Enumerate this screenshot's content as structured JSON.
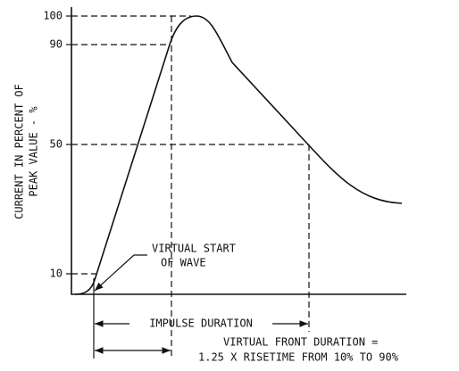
{
  "y_axis": {
    "label_lines": [
      "CURRENT IN PERCENT OF",
      "PEAK VALUE - %"
    ],
    "ticks": [
      "100",
      "90",
      "50",
      "10"
    ]
  },
  "annotations": {
    "virtual_start": [
      "VIRTUAL START",
      "OF WAVE"
    ],
    "impulse_duration": "IMPULSE DURATION",
    "virtual_front": [
      "VIRTUAL FRONT DURATION =",
      "1.25 X RISETIME FROM 10% TO 90%"
    ]
  }
}
